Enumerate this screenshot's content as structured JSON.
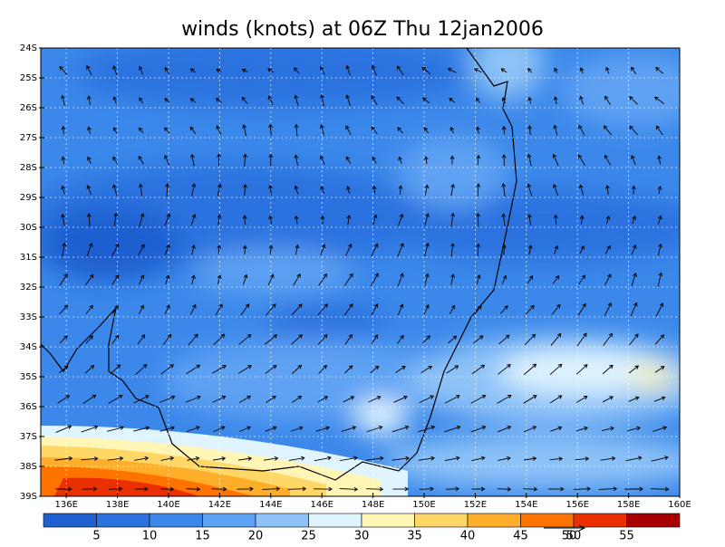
{
  "title": "winds (knots) at 06Z Thu 12jan2006",
  "lat_labels": [
    "24S",
    "25S",
    "26S",
    "27S",
    "28S",
    "29S",
    "30S",
    "31S",
    "32S",
    "33S",
    "34S",
    "35S",
    "36S",
    "37S",
    "38S",
    "39S"
  ],
  "lon_labels": [
    "136E",
    "138E",
    "140E",
    "142E",
    "144E",
    "146E",
    "148E",
    "150E",
    "152E",
    "154E",
    "156E",
    "158E",
    "160E"
  ],
  "colorbar": {
    "colors": [
      "#1f5fd0",
      "#2c72df",
      "#3b88ea",
      "#5ea2f3",
      "#8ec3f8",
      "#dff4ff",
      "#fff5b4",
      "#ffd766",
      "#ffae2a",
      "#ff7400",
      "#e83000",
      "#a80000"
    ],
    "labels": [
      "5",
      "10",
      "15",
      "20",
      "25",
      "30",
      "35",
      "40",
      "45",
      "50",
      "55"
    ]
  },
  "reference_vector": {
    "label": "50"
  }
}
